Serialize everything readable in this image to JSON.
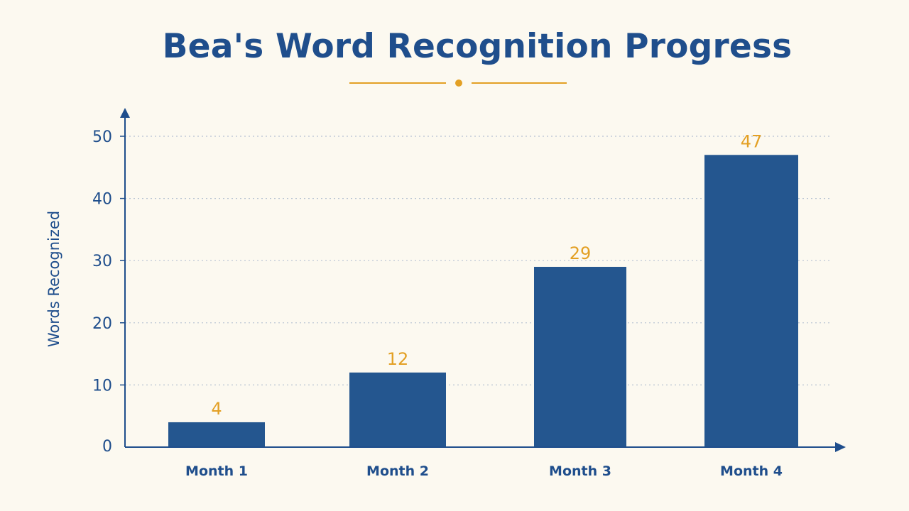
{
  "chart_data": {
    "type": "bar",
    "title": "Bea's Word Recognition Progress",
    "xlabel": "",
    "ylabel": "Words Recognized",
    "categories": [
      "Month 1",
      "Month 2",
      "Month 3",
      "Month 4"
    ],
    "values": [
      4,
      12,
      29,
      47
    ],
    "ylim": [
      0,
      50
    ],
    "yticks": [
      0,
      10,
      20,
      30,
      40,
      50
    ],
    "grid": true,
    "data_labels": true,
    "colors": {
      "bar": "#24568f",
      "label": "#e3a024",
      "axis": "#1f4e8c",
      "grid": "#b6c2d2",
      "title": "#1f4e8c",
      "accent": "#e3a024",
      "background": "#fcf9f0"
    }
  }
}
